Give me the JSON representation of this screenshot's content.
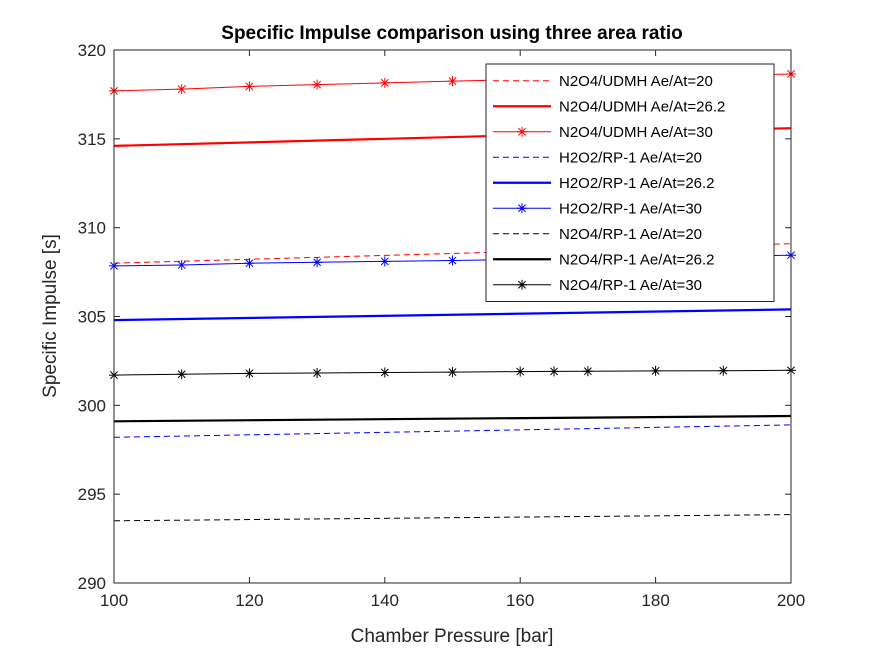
{
  "chart_data": {
    "type": "line",
    "title": "Specific Impulse comparison using three area ratio",
    "xlabel": "Chamber Pressure [bar]",
    "ylabel": "Specific Impulse [s]",
    "xlim": [
      100,
      200
    ],
    "ylim": [
      290,
      320
    ],
    "xticks": [
      100,
      120,
      140,
      160,
      180,
      200
    ],
    "yticks": [
      290,
      295,
      300,
      305,
      310,
      315,
      320
    ],
    "grid": false,
    "legend_position": "top-right",
    "series": [
      {
        "name": "N2O4/UDMH Ae/At=20",
        "color": "#ff0000",
        "style": "dashed",
        "marker": "none",
        "x": [
          100,
          200
        ],
        "y": [
          308.0,
          309.1
        ]
      },
      {
        "name": "N2O4/UDMH Ae/At=26.2",
        "color": "#ff0000",
        "style": "solid-thick",
        "marker": "none",
        "x": [
          100,
          200
        ],
        "y": [
          314.6,
          315.6
        ]
      },
      {
        "name": "N2O4/UDMH Ae/At=30",
        "color": "#ff0000",
        "style": "solid",
        "marker": "asterisk",
        "x": [
          100,
          110,
          120,
          130,
          140,
          150,
          200
        ],
        "y": [
          317.7,
          317.8,
          317.95,
          318.05,
          318.15,
          318.25,
          318.65
        ]
      },
      {
        "name": "H2O2/RP-1 Ae/At=20",
        "color": "#0000ff",
        "style": "dashed",
        "marker": "none",
        "x": [
          100,
          200
        ],
        "y": [
          298.2,
          298.9
        ]
      },
      {
        "name": "H2O2/RP-1 Ae/At=26.2",
        "color": "#0000ff",
        "style": "solid-thick",
        "marker": "none",
        "x": [
          100,
          200
        ],
        "y": [
          304.8,
          305.4
        ]
      },
      {
        "name": "H2O2/RP-1 Ae/At=30",
        "color": "#0000ff",
        "style": "solid",
        "marker": "asterisk",
        "x": [
          100,
          110,
          120,
          130,
          140,
          150,
          200
        ],
        "y": [
          307.85,
          307.9,
          308.0,
          308.05,
          308.1,
          308.15,
          308.45
        ]
      },
      {
        "name": "N2O4/RP-1 Ae/At=20",
        "color": "#000000",
        "style": "dashed",
        "marker": "none",
        "x": [
          100,
          200
        ],
        "y": [
          293.5,
          293.85
        ]
      },
      {
        "name": "N2O4/RP-1 Ae/At=26.2",
        "color": "#000000",
        "style": "solid-thick",
        "marker": "none",
        "x": [
          100,
          200
        ],
        "y": [
          299.1,
          299.4
        ]
      },
      {
        "name": "N2O4/RP-1 Ae/At=30",
        "color": "#000000",
        "style": "solid",
        "marker": "asterisk",
        "x": [
          100,
          110,
          120,
          130,
          140,
          150,
          160,
          165,
          170,
          180,
          190,
          200
        ],
        "y": [
          301.7,
          301.75,
          301.8,
          301.82,
          301.85,
          301.87,
          301.9,
          301.91,
          301.92,
          301.94,
          301.95,
          301.97
        ]
      }
    ]
  }
}
